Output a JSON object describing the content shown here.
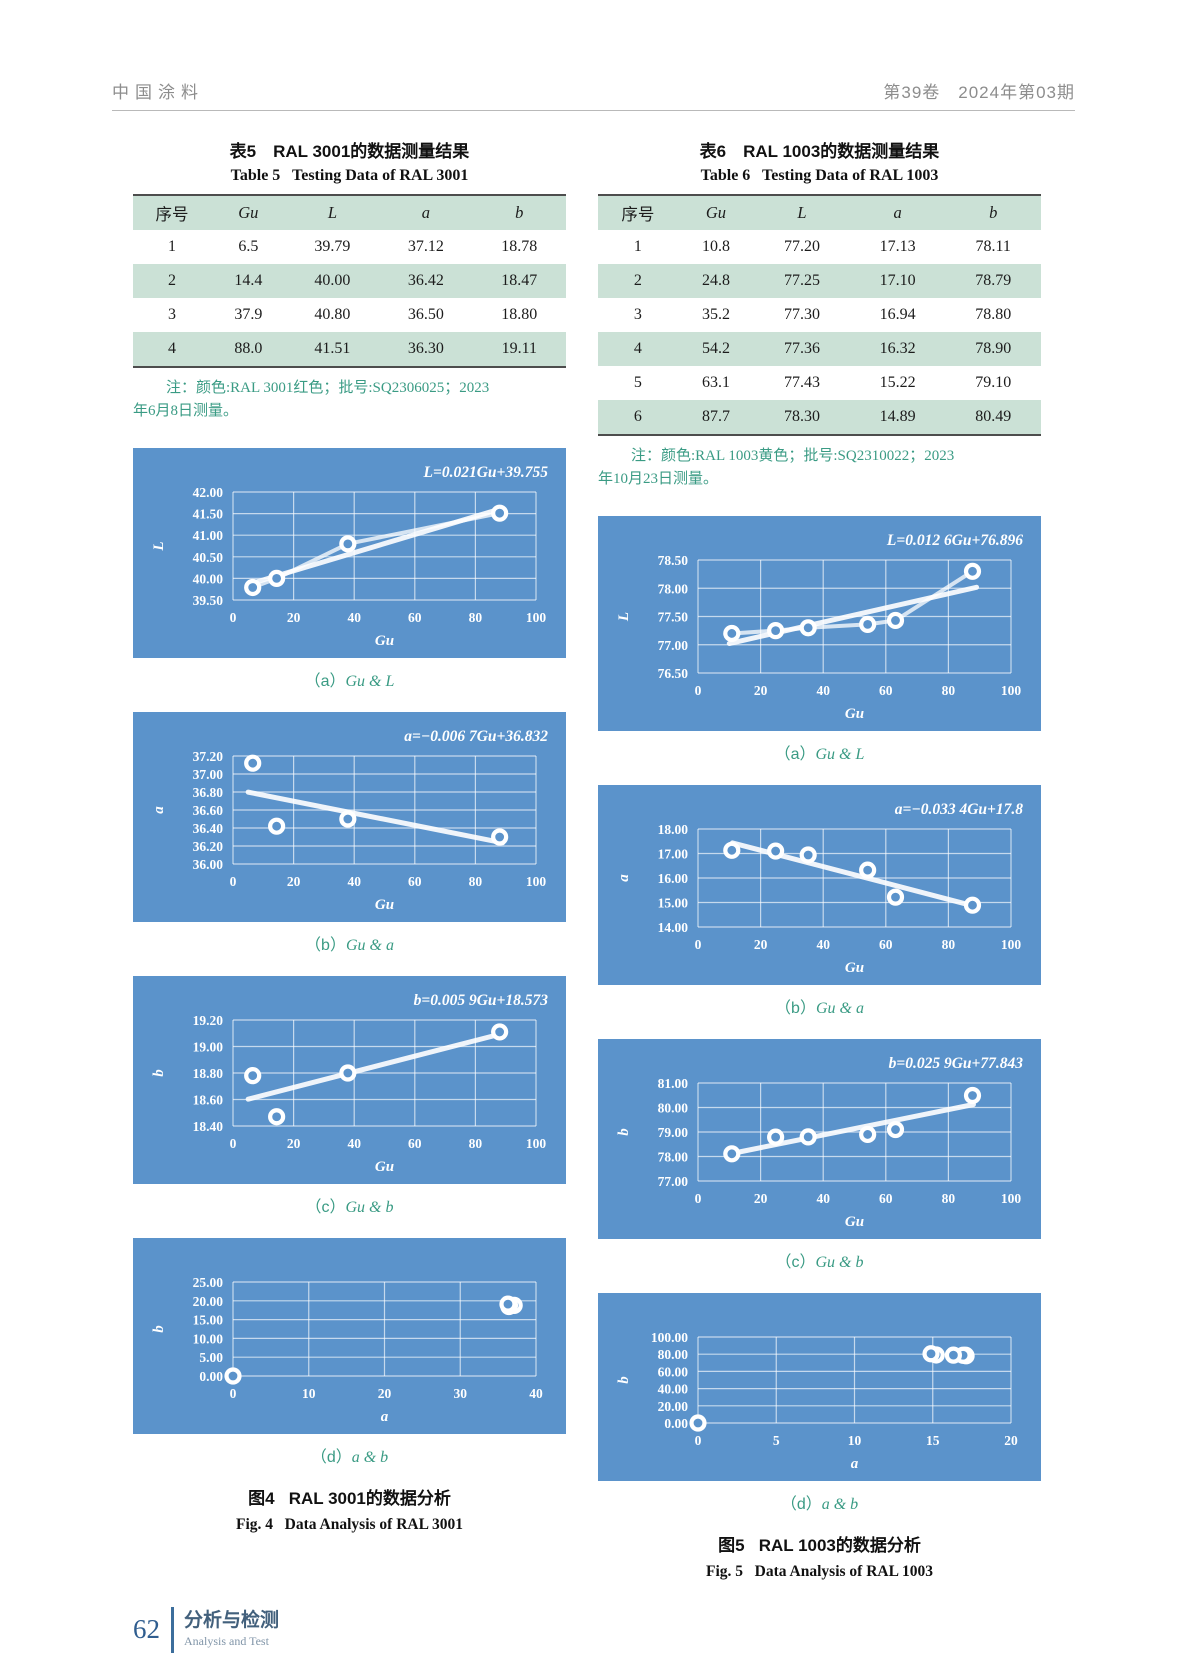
{
  "header": {
    "left": "中国涂料",
    "right": "第39卷　2024年第03期"
  },
  "left": {
    "table": {
      "title_cn": "表5　RAL 3001的数据测量结果",
      "title_en": "Table 5   Testing Data of RAL 3001",
      "headers": [
        "序号",
        "Gu",
        "L",
        "a",
        "b"
      ],
      "rows": [
        [
          "1",
          "6.5",
          "39.79",
          "37.12",
          "18.78"
        ],
        [
          "2",
          "14.4",
          "40.00",
          "36.42",
          "18.47"
        ],
        [
          "3",
          "37.9",
          "40.80",
          "36.50",
          "18.80"
        ],
        [
          "4",
          "88.0",
          "41.51",
          "36.30",
          "19.11"
        ]
      ],
      "note_line1": "注：颜色:RAL 3001红色；批号:SQ2306025；2023",
      "note_line2": "年6月8日测量。"
    },
    "figure": {
      "caption_cn": "图4   RAL 3001的数据分析",
      "caption_en": "Fig. 4   Data Analysis of RAL 3001"
    }
  },
  "right": {
    "table": {
      "title_cn": "表6　RAL 1003的数据测量结果",
      "title_en": "Table 6   Testing Data of RAL 1003",
      "headers": [
        "序号",
        "Gu",
        "L",
        "a",
        "b"
      ],
      "rows": [
        [
          "1",
          "10.8",
          "77.20",
          "17.13",
          "78.11"
        ],
        [
          "2",
          "24.8",
          "77.25",
          "17.10",
          "78.79"
        ],
        [
          "3",
          "35.2",
          "77.30",
          "16.94",
          "78.80"
        ],
        [
          "4",
          "54.2",
          "77.36",
          "16.32",
          "78.90"
        ],
        [
          "5",
          "63.1",
          "77.43",
          "15.22",
          "79.10"
        ],
        [
          "6",
          "87.7",
          "78.30",
          "14.89",
          "80.49"
        ]
      ],
      "note_line1": "注：颜色:RAL 1003黄色；批号:SQ2310022；2023",
      "note_line2": "年10月23日测量。"
    },
    "figure": {
      "caption_cn": "图5   RAL 1003的数据分析",
      "caption_en": "Fig. 5   Data Analysis of RAL 1003"
    }
  },
  "chart_data": [
    {
      "type": "scatter",
      "equation": "L=0.021Gu+39.755",
      "xlabel": "Gu",
      "ylabel": "L",
      "xlim": [
        0,
        100
      ],
      "xticks": [
        0,
        20,
        40,
        60,
        80,
        100
      ],
      "ylim": [
        39.5,
        42.0
      ],
      "yticks": [
        39.5,
        40.0,
        40.5,
        41.0,
        41.5,
        42.0
      ],
      "x": [
        6.5,
        14.4,
        37.9,
        88.0
      ],
      "y": [
        39.79,
        40.0,
        40.8,
        41.51
      ],
      "trend": {
        "slope": 0.021,
        "intercept": 39.755,
        "x1": 5,
        "x2": 89
      },
      "connect": true,
      "grid": true,
      "legend": "none",
      "caption_prefix": "（a）",
      "caption_label": "Gu & L"
    },
    {
      "type": "scatter",
      "equation": "a=−0.006 7Gu+36.832",
      "xlabel": "Gu",
      "ylabel": "a",
      "xlim": [
        0,
        100
      ],
      "xticks": [
        0,
        20,
        40,
        60,
        80,
        100
      ],
      "ylim": [
        36.0,
        37.2
      ],
      "yticks": [
        36.0,
        36.2,
        36.4,
        36.6,
        36.8,
        37.0,
        37.2
      ],
      "x": [
        6.5,
        14.4,
        37.9,
        88.0
      ],
      "y": [
        37.12,
        36.42,
        36.5,
        36.3
      ],
      "trend": {
        "slope": -0.0067,
        "intercept": 36.832,
        "x1": 5,
        "x2": 89
      },
      "connect": false,
      "grid": true,
      "legend": "none",
      "caption_prefix": "（b）",
      "caption_label": "Gu & a"
    },
    {
      "type": "scatter",
      "equation": "b=0.005 9Gu+18.573",
      "xlabel": "Gu",
      "ylabel": "b",
      "xlim": [
        0,
        100
      ],
      "xticks": [
        0,
        20,
        40,
        60,
        80,
        100
      ],
      "ylim": [
        18.4,
        19.2
      ],
      "yticks": [
        18.4,
        18.6,
        18.8,
        19.0,
        19.2
      ],
      "x": [
        6.5,
        14.4,
        37.9,
        88.0
      ],
      "y": [
        18.78,
        18.47,
        18.8,
        19.11
      ],
      "trend": {
        "slope": 0.0059,
        "intercept": 18.573,
        "x1": 5,
        "x2": 89
      },
      "connect": false,
      "grid": true,
      "legend": "none",
      "caption_prefix": "（c）",
      "caption_label": "Gu & b"
    },
    {
      "type": "scatter",
      "equation": "",
      "xlabel": "a",
      "ylabel": "b",
      "xlim": [
        0,
        40
      ],
      "xticks": [
        0,
        10,
        20,
        30,
        40
      ],
      "ylim": [
        0,
        25
      ],
      "yticks": [
        0,
        5,
        10,
        15,
        20,
        25
      ],
      "x": [
        0,
        37.12,
        36.42,
        36.5,
        36.3
      ],
      "y": [
        0,
        18.78,
        18.47,
        18.8,
        19.11
      ],
      "trend": null,
      "connect": false,
      "grid": true,
      "legend": "none",
      "caption_prefix": "（d）",
      "caption_label": "a & b"
    },
    {
      "type": "scatter",
      "equation": "L=0.012 6Gu+76.896",
      "xlabel": "Gu",
      "ylabel": "L",
      "xlim": [
        0,
        100
      ],
      "xticks": [
        0,
        20,
        40,
        60,
        80,
        100
      ],
      "ylim": [
        76.5,
        78.5
      ],
      "yticks": [
        76.5,
        77.0,
        77.5,
        78.0,
        78.5
      ],
      "x": [
        10.8,
        24.8,
        35.2,
        54.2,
        63.1,
        87.7
      ],
      "y": [
        77.2,
        77.25,
        77.3,
        77.36,
        77.43,
        78.3
      ],
      "trend": {
        "slope": 0.0126,
        "intercept": 76.896,
        "x1": 10,
        "x2": 89
      },
      "connect": true,
      "grid": true,
      "legend": "none",
      "caption_prefix": "（a）",
      "caption_label": "Gu & L"
    },
    {
      "type": "scatter",
      "equation": "a=−0.033 4Gu+17.8",
      "xlabel": "Gu",
      "ylabel": "a",
      "xlim": [
        0,
        100
      ],
      "xticks": [
        0,
        20,
        40,
        60,
        80,
        100
      ],
      "ylim": [
        14.0,
        18.0
      ],
      "yticks": [
        14.0,
        15.0,
        16.0,
        17.0,
        18.0
      ],
      "x": [
        10.8,
        24.8,
        35.2,
        54.2,
        63.1,
        87.7
      ],
      "y": [
        17.13,
        17.1,
        16.94,
        16.32,
        15.22,
        14.89
      ],
      "trend": {
        "slope": -0.0334,
        "intercept": 17.8,
        "x1": 11,
        "x2": 88
      },
      "connect": false,
      "grid": true,
      "legend": "none",
      "caption_prefix": "（b）",
      "caption_label": "Gu & a"
    },
    {
      "type": "scatter",
      "equation": "b=0.025 9Gu+77.843",
      "xlabel": "Gu",
      "ylabel": "b",
      "xlim": [
        0,
        100
      ],
      "xticks": [
        0,
        20,
        40,
        60,
        80,
        100
      ],
      "ylim": [
        77.0,
        81.0
      ],
      "yticks": [
        77.0,
        78.0,
        79.0,
        80.0,
        81.0
      ],
      "x": [
        10.8,
        24.8,
        35.2,
        54.2,
        63.1,
        87.7
      ],
      "y": [
        78.11,
        78.79,
        78.8,
        78.9,
        79.1,
        80.49
      ],
      "trend": {
        "slope": 0.0259,
        "intercept": 77.843,
        "x1": 11,
        "x2": 88
      },
      "connect": false,
      "grid": true,
      "legend": "none",
      "caption_prefix": "（c）",
      "caption_label": "Gu & b"
    },
    {
      "type": "scatter",
      "equation": "",
      "xlabel": "a",
      "ylabel": "b",
      "xlim": [
        0,
        20
      ],
      "xticks": [
        0,
        5,
        10,
        15,
        20
      ],
      "ylim": [
        0,
        100
      ],
      "yticks": [
        0,
        20,
        40,
        60,
        80,
        100
      ],
      "x": [
        0,
        17.13,
        17.1,
        16.94,
        16.32,
        15.22,
        14.89
      ],
      "y": [
        0,
        78.11,
        78.79,
        78.8,
        78.9,
        79.1,
        80.49
      ],
      "trend": null,
      "connect": false,
      "grid": true,
      "legend": "none",
      "caption_prefix": "（d）",
      "caption_label": "a & b"
    }
  ],
  "colors": {
    "chart_bg": "#5b93cb",
    "chart_fg": "#ffffff",
    "table_green": "#cbe1d6",
    "note_teal": "#3a9b84",
    "footer_blue": "#2f5d8f"
  },
  "footer": {
    "page_number": "62",
    "section_cn": "分析与检测",
    "section_en": "Analysis and Test"
  }
}
